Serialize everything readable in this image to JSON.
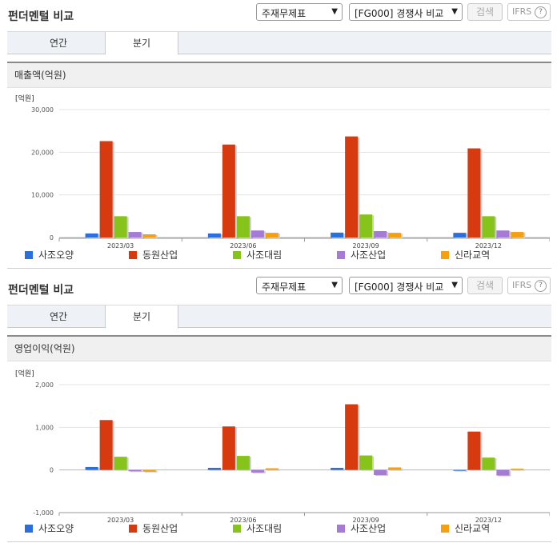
{
  "header": {
    "title": "펀더멘털 비교",
    "select_statement": "주재무제표",
    "select_compare": "[FG000] 경쟁사 비교",
    "search_button": "검색",
    "ifrs_label": "IFRS",
    "help_glyph": "?"
  },
  "tabs": [
    "연간",
    "분기"
  ],
  "active_tab": "분기",
  "colors": {
    "사조오양": "#2a6fdb",
    "동원산업": "#d83a0f",
    "사조대림": "#86c41b",
    "사조산업": "#a57bd6",
    "신라교역": "#f5a011"
  },
  "chart_data": [
    {
      "type": "bar",
      "title": "매출액(억원)",
      "unit": "[억원]",
      "categories": [
        "2023/03",
        "2023/06",
        "2023/09",
        "2023/12"
      ],
      "ylim": [
        0,
        30000
      ],
      "yticks": [
        "0",
        "10,000",
        "20,000",
        "30,000"
      ],
      "ytick_values": [
        0,
        10000,
        20000,
        30000
      ],
      "grid": true,
      "legend_position": "bottom",
      "series": [
        {
          "name": "사조오양",
          "color": "#2a6fdb",
          "values": [
            950,
            950,
            1150,
            1100
          ]
        },
        {
          "name": "동원산업",
          "color": "#d83a0f",
          "values": [
            22600,
            21800,
            23700,
            20900
          ]
        },
        {
          "name": "사조대림",
          "color": "#86c41b",
          "values": [
            5000,
            5000,
            5400,
            5000
          ]
        },
        {
          "name": "사조산업",
          "color": "#a57bd6",
          "values": [
            1300,
            1650,
            1500,
            1650
          ]
        },
        {
          "name": "신라교역",
          "color": "#f5a011",
          "values": [
            750,
            1100,
            1100,
            1300
          ]
        }
      ]
    },
    {
      "type": "bar",
      "title": "영업이익(억원)",
      "unit": "[억원]",
      "categories": [
        "2023/03",
        "2023/06",
        "2023/09",
        "2023/12"
      ],
      "ylim": [
        -1000,
        2000
      ],
      "yticks": [
        "-1,000",
        "0",
        "1,000",
        "2,000"
      ],
      "ytick_values": [
        -1000,
        0,
        1000,
        2000
      ],
      "grid": true,
      "legend_position": "bottom",
      "series": [
        {
          "name": "사조오양",
          "color": "#2a6fdb",
          "values": [
            70,
            50,
            50,
            0
          ]
        },
        {
          "name": "동원산업",
          "color": "#d83a0f",
          "values": [
            1170,
            1020,
            1540,
            900
          ]
        },
        {
          "name": "사조대림",
          "color": "#86c41b",
          "values": [
            310,
            330,
            340,
            290
          ]
        },
        {
          "name": "사조산업",
          "color": "#a57bd6",
          "values": [
            -30,
            -60,
            -120,
            -130
          ]
        },
        {
          "name": "신라교역",
          "color": "#f5a011",
          "values": [
            -40,
            40,
            60,
            30
          ]
        }
      ]
    }
  ]
}
